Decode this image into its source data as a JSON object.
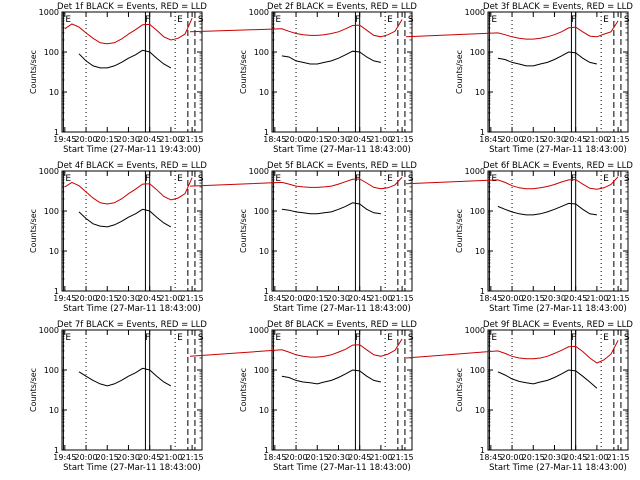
{
  "chart_data": [
    {
      "type": "line",
      "title": "Det 1f BLACK = Events, RED = LLD",
      "xlabel": "Start Time (27-Mar-11 19:43:00)",
      "ylabel": "Counts/sec",
      "x_ticks": [
        "19:45",
        "20:00",
        "20:15",
        "20:30",
        "20:45",
        "21:00",
        "21:15"
      ],
      "y_ticks": [
        "1",
        "10",
        "100",
        "1000"
      ],
      "ylim": [
        1,
        1000
      ],
      "y_scale": "log",
      "series": [
        {
          "color": "#cc0000",
          "x": [
            "19:45",
            "19:50",
            "19:55",
            "20:00",
            "20:05",
            "20:10",
            "20:15",
            "20:20",
            "20:25",
            "20:30",
            "20:35",
            "20:40",
            "20:45",
            "20:50",
            "20:55",
            "21:00",
            "21:05",
            "21:10",
            "21:15"
          ],
          "values": [
            380,
            500,
            420,
            300,
            220,
            170,
            160,
            170,
            210,
            280,
            360,
            480,
            490,
            350,
            240,
            200,
            220,
            280,
            700
          ]
        },
        {
          "color": "#000000",
          "x": [
            "19:45",
            "19:50",
            "19:55",
            "20:00",
            "20:05",
            "20:10",
            "20:15",
            "20:20",
            "20:25",
            "20:30",
            "20:35",
            "20:40",
            "20:45",
            "20:50",
            "20:55",
            "21:00",
            "21:05",
            "21:10",
            "21:15"
          ],
          "values": [
            null,
            null,
            90,
            60,
            45,
            40,
            40,
            45,
            55,
            70,
            85,
            110,
            100,
            70,
            50,
            40,
            null,
            null,
            null
          ]
        }
      ],
      "markers": {
        "E_left": "E",
        "F": "F",
        "E_right": "E",
        "S": "S"
      }
    },
    {
      "type": "line",
      "title": "Det 2f BLACK = Events, RED = LLD",
      "xlabel": "Start Time (27-Mar-11 18:43:00)",
      "ylabel": "Counts/sec",
      "x_ticks": [
        "18:45",
        "20:00",
        "20:15",
        "20:30",
        "20:45",
        "21:00",
        "21:15"
      ],
      "y_ticks": [
        "1",
        "10",
        "100",
        "1000"
      ],
      "ylim": [
        1,
        1000
      ],
      "y_scale": "log",
      "series": [
        {
          "color": "#cc0000",
          "x": [
            "18:45",
            "19:50",
            "19:55",
            "20:00",
            "20:05",
            "20:10",
            "20:15",
            "20:20",
            "20:25",
            "20:30",
            "20:35",
            "20:40",
            "20:45",
            "20:50",
            "20:55",
            "21:00",
            "21:05",
            "21:10",
            "21:15"
          ],
          "values": [
            320,
            380,
            330,
            290,
            270,
            260,
            260,
            270,
            290,
            320,
            380,
            460,
            470,
            350,
            260,
            240,
            270,
            330,
            650
          ]
        },
        {
          "color": "#000000",
          "x": [
            "18:45",
            "19:50",
            "19:55",
            "20:00",
            "20:05",
            "20:10",
            "20:15",
            "20:20",
            "20:25",
            "20:30",
            "20:35",
            "20:40",
            "20:45",
            "20:50",
            "20:55",
            "21:00",
            "21:05",
            "21:10",
            "21:15"
          ],
          "values": [
            null,
            80,
            75,
            60,
            55,
            50,
            50,
            55,
            60,
            70,
            85,
            105,
            100,
            75,
            60,
            55,
            null,
            null,
            null
          ]
        }
      ],
      "markers": {
        "E_left": "E",
        "F": "F",
        "E_right": "E",
        "S": "S"
      }
    },
    {
      "type": "line",
      "title": "Det 3f BLACK = Events, RED = LLD",
      "xlabel": "Start Time (27-Mar-11 18:43:00)",
      "ylabel": "Counts/sec",
      "x_ticks": [
        "18:45",
        "20:00",
        "20:15",
        "20:30",
        "20:45",
        "21:00",
        "21:15"
      ],
      "y_ticks": [
        "1",
        "10",
        "100",
        "1000"
      ],
      "ylim": [
        1,
        1000
      ],
      "y_scale": "log",
      "series": [
        {
          "color": "#cc0000",
          "x": [
            "18:45",
            "19:50",
            "19:55",
            "20:00",
            "20:05",
            "20:10",
            "20:15",
            "20:20",
            "20:25",
            "20:30",
            "20:35",
            "20:40",
            "20:45",
            "20:50",
            "20:55",
            "21:00",
            "21:05",
            "21:10",
            "21:15"
          ],
          "values": [
            240,
            300,
            270,
            240,
            220,
            210,
            210,
            220,
            240,
            270,
            320,
            400,
            420,
            320,
            250,
            240,
            280,
            320,
            600
          ]
        },
        {
          "color": "#000000",
          "x": [
            "18:45",
            "19:50",
            "19:55",
            "20:00",
            "20:05",
            "20:10",
            "20:15",
            "20:20",
            "20:25",
            "20:30",
            "20:35",
            "20:40",
            "20:45",
            "20:50",
            "20:55",
            "21:00",
            "21:05",
            "21:10",
            "21:15"
          ],
          "values": [
            null,
            70,
            65,
            55,
            50,
            45,
            45,
            50,
            55,
            65,
            80,
            100,
            95,
            70,
            55,
            50,
            null,
            null,
            null
          ]
        }
      ],
      "markers": {
        "E_left": "E",
        "F": "F",
        "E_right": "E",
        "S": "S"
      }
    },
    {
      "type": "line",
      "title": "Det 4f BLACK = Events, RED = LLD",
      "xlabel": "Start Time (27-Mar-11 18:43:00)",
      "ylabel": "Counts/sec",
      "x_ticks": [
        "19:45",
        "20:00",
        "20:15",
        "20:30",
        "20:45",
        "21:00",
        "21:15"
      ],
      "y_ticks": [
        "1",
        "10",
        "100",
        "1000"
      ],
      "ylim": [
        1,
        1000
      ],
      "y_scale": "log",
      "series": [
        {
          "color": "#cc0000",
          "x": [
            "19:45",
            "19:50",
            "19:55",
            "20:00",
            "20:05",
            "20:10",
            "20:15",
            "20:20",
            "20:25",
            "20:30",
            "20:35",
            "20:40",
            "20:45",
            "20:50",
            "20:55",
            "21:00",
            "21:05",
            "21:10",
            "21:15"
          ],
          "values": [
            400,
            520,
            430,
            300,
            210,
            160,
            150,
            160,
            200,
            270,
            350,
            470,
            480,
            340,
            230,
            190,
            210,
            270,
            680
          ]
        },
        {
          "color": "#000000",
          "x": [
            "19:45",
            "19:50",
            "19:55",
            "20:00",
            "20:05",
            "20:10",
            "20:15",
            "20:20",
            "20:25",
            "20:30",
            "20:35",
            "20:40",
            "20:45",
            "20:50",
            "20:55",
            "21:00",
            "21:05",
            "21:10",
            "21:15"
          ],
          "values": [
            null,
            null,
            95,
            65,
            48,
            42,
            40,
            45,
            55,
            70,
            85,
            110,
            100,
            70,
            50,
            40,
            null,
            null,
            null
          ]
        }
      ],
      "markers": {
        "E_left": "E",
        "F": "F",
        "E_right": "E",
        "S": "S"
      }
    },
    {
      "type": "line",
      "title": "Det 5f BLACK = Events, RED = LLD",
      "xlabel": "Start Time (27-Mar-11 18:43:00)",
      "ylabel": "Counts/sec",
      "x_ticks": [
        "18:45",
        "20:00",
        "20:15",
        "20:30",
        "20:45",
        "21:00",
        "21:15"
      ],
      "y_ticks": [
        "1",
        "10",
        "100",
        "1000"
      ],
      "ylim": [
        1,
        1000
      ],
      "y_scale": "log",
      "series": [
        {
          "color": "#cc0000",
          "x": [
            "18:45",
            "19:50",
            "19:55",
            "20:00",
            "20:05",
            "20:10",
            "20:15",
            "20:20",
            "20:25",
            "20:30",
            "20:35",
            "20:40",
            "20:45",
            "20:50",
            "20:55",
            "21:00",
            "21:05",
            "21:10",
            "21:15"
          ],
          "values": [
            420,
            520,
            470,
            420,
            400,
            390,
            390,
            400,
            420,
            470,
            540,
            620,
            630,
            500,
            390,
            360,
            380,
            450,
            700
          ]
        },
        {
          "color": "#000000",
          "x": [
            "18:45",
            "19:50",
            "19:55",
            "20:00",
            "20:05",
            "20:10",
            "20:15",
            "20:20",
            "20:25",
            "20:30",
            "20:35",
            "20:40",
            "20:45",
            "20:50",
            "20:55",
            "21:00",
            "21:05",
            "21:10",
            "21:15"
          ],
          "values": [
            null,
            110,
            105,
            95,
            90,
            85,
            85,
            90,
            95,
            110,
            130,
            160,
            150,
            110,
            90,
            85,
            null,
            null,
            null
          ]
        }
      ],
      "markers": {
        "E_left": "E",
        "F": "F",
        "E_right": "E",
        "S": "S"
      }
    },
    {
      "type": "line",
      "title": "Det 6f BLACK = Events, RED = LLD",
      "xlabel": "Start Time (27-Mar-11 18:43:00)",
      "ylabel": "Counts/sec",
      "x_ticks": [
        "18:45",
        "20:00",
        "20:15",
        "20:30",
        "20:45",
        "21:00",
        "21:15"
      ],
      "y_ticks": [
        "1",
        "10",
        "100",
        "1000"
      ],
      "ylim": [
        1,
        1000
      ],
      "y_scale": "log",
      "series": [
        {
          "color": "#cc0000",
          "x": [
            "18:45",
            "19:50",
            "19:55",
            "20:00",
            "20:05",
            "20:10",
            "20:15",
            "20:20",
            "20:25",
            "20:30",
            "20:35",
            "20:40",
            "20:45",
            "20:50",
            "20:55",
            "21:00",
            "21:05",
            "21:10",
            "21:15"
          ],
          "values": [
            480,
            600,
            520,
            430,
            380,
            360,
            360,
            380,
            410,
            460,
            530,
            600,
            610,
            470,
            370,
            350,
            380,
            460,
            720
          ]
        },
        {
          "color": "#000000",
          "x": [
            "18:45",
            "19:50",
            "19:55",
            "20:00",
            "20:05",
            "20:10",
            "20:15",
            "20:20",
            "20:25",
            "20:30",
            "20:35",
            "20:40",
            "20:45",
            "20:50",
            "20:55",
            "21:00",
            "21:05",
            "21:10",
            "21:15"
          ],
          "values": [
            null,
            130,
            110,
            95,
            85,
            80,
            80,
            85,
            95,
            110,
            130,
            155,
            150,
            110,
            85,
            80,
            null,
            null,
            null
          ]
        }
      ],
      "markers": {
        "E_left": "E",
        "F": "F",
        "E_right": "E",
        "S": "S"
      }
    },
    {
      "type": "line",
      "title": "Det 7f BLACK = Events, RED = LLD",
      "xlabel": "Start Time (27-Mar-11 18:43:00)",
      "ylabel": "Counts/sec",
      "x_ticks": [
        "19:45",
        "20:00",
        "20:15",
        "20:30",
        "20:45",
        "21:00",
        "21:15"
      ],
      "y_ticks": [
        "1",
        "10",
        "100",
        "1000"
      ],
      "ylim": [
        1,
        1000
      ],
      "y_scale": "log",
      "series": [
        {
          "color": "#000000",
          "x": [
            "19:45",
            "19:50",
            "19:55",
            "20:00",
            "20:05",
            "20:10",
            "20:15",
            "20:20",
            "20:25",
            "20:30",
            "20:35",
            "20:40",
            "20:45",
            "20:50",
            "20:55",
            "21:00",
            "21:05",
            "21:10",
            "21:15"
          ],
          "values": [
            null,
            null,
            90,
            70,
            55,
            45,
            40,
            45,
            55,
            70,
            85,
            110,
            100,
            70,
            50,
            40,
            null,
            null,
            null
          ]
        }
      ],
      "markers": {
        "E_left": "E",
        "F": "F",
        "E_right": "E",
        "S": "S"
      }
    },
    {
      "type": "line",
      "title": "Det 8f BLACK = Events, RED = LLD",
      "xlabel": "Start Time (27-Mar-11 18:43:00)",
      "ylabel": "Counts/sec",
      "x_ticks": [
        "18:45",
        "20:00",
        "20:15",
        "20:30",
        "20:45",
        "21:00",
        "21:15"
      ],
      "y_ticks": [
        "1",
        "10",
        "100",
        "1000"
      ],
      "ylim": [
        1,
        1000
      ],
      "y_scale": "log",
      "series": [
        {
          "color": "#cc0000",
          "x": [
            "18:45",
            "19:50",
            "19:55",
            "20:00",
            "20:05",
            "20:10",
            "20:15",
            "20:20",
            "20:25",
            "20:30",
            "20:35",
            "20:40",
            "20:45",
            "20:50",
            "20:55",
            "21:00",
            "21:05",
            "21:10",
            "21:15"
          ],
          "values": [
            220,
            320,
            280,
            240,
            220,
            210,
            210,
            220,
            240,
            280,
            330,
            420,
            430,
            320,
            240,
            220,
            250,
            310,
            600
          ]
        },
        {
          "color": "#000000",
          "x": [
            "18:45",
            "19:50",
            "19:55",
            "20:00",
            "20:05",
            "20:10",
            "20:15",
            "20:20",
            "20:25",
            "20:30",
            "20:35",
            "20:40",
            "20:45",
            "20:50",
            "20:55",
            "21:00",
            "21:05",
            "21:10",
            "21:15"
          ],
          "values": [
            null,
            70,
            65,
            55,
            50,
            48,
            45,
            50,
            55,
            65,
            80,
            100,
            95,
            70,
            55,
            50,
            null,
            null,
            null
          ]
        }
      ],
      "markers": {
        "E_left": "E",
        "F": "F",
        "E_right": "E",
        "S": "S"
      }
    },
    {
      "type": "line",
      "title": "Det 9f BLACK = Events, RED = LLD",
      "xlabel": "Start Time (27-Mar-11 18:43:00)",
      "ylabel": "Counts/sec",
      "x_ticks": [
        "18:45",
        "20:00",
        "20:15",
        "20:30",
        "20:45",
        "21:00",
        "21:15"
      ],
      "y_ticks": [
        "1",
        "10",
        "100",
        "1000"
      ],
      "ylim": [
        1,
        1000
      ],
      "y_scale": "log",
      "series": [
        {
          "color": "#cc0000",
          "x": [
            "18:45",
            "19:50",
            "19:55",
            "20:00",
            "20:05",
            "20:10",
            "20:15",
            "20:20",
            "20:25",
            "20:30",
            "20:35",
            "20:40",
            "20:45",
            "20:50",
            "20:55",
            "21:00",
            "21:05",
            "21:10",
            "21:15"
          ],
          "values": [
            200,
            300,
            260,
            220,
            200,
            190,
            190,
            200,
            220,
            260,
            310,
            380,
            390,
            290,
            200,
            150,
            180,
            250,
            550
          ]
        },
        {
          "color": "#000000",
          "x": [
            "18:45",
            "19:50",
            "19:55",
            "20:00",
            "20:05",
            "20:10",
            "20:15",
            "20:20",
            "20:25",
            "20:30",
            "20:35",
            "20:40",
            "20:45",
            "20:50",
            "20:55",
            "21:00",
            "21:05",
            "21:10",
            "21:15"
          ],
          "values": [
            null,
            90,
            75,
            60,
            52,
            48,
            45,
            50,
            55,
            65,
            80,
            100,
            95,
            70,
            50,
            35,
            null,
            null,
            null
          ]
        }
      ],
      "markers": {
        "E_left": "E",
        "F": "F",
        "E_right": "E",
        "S": "S"
      }
    }
  ]
}
